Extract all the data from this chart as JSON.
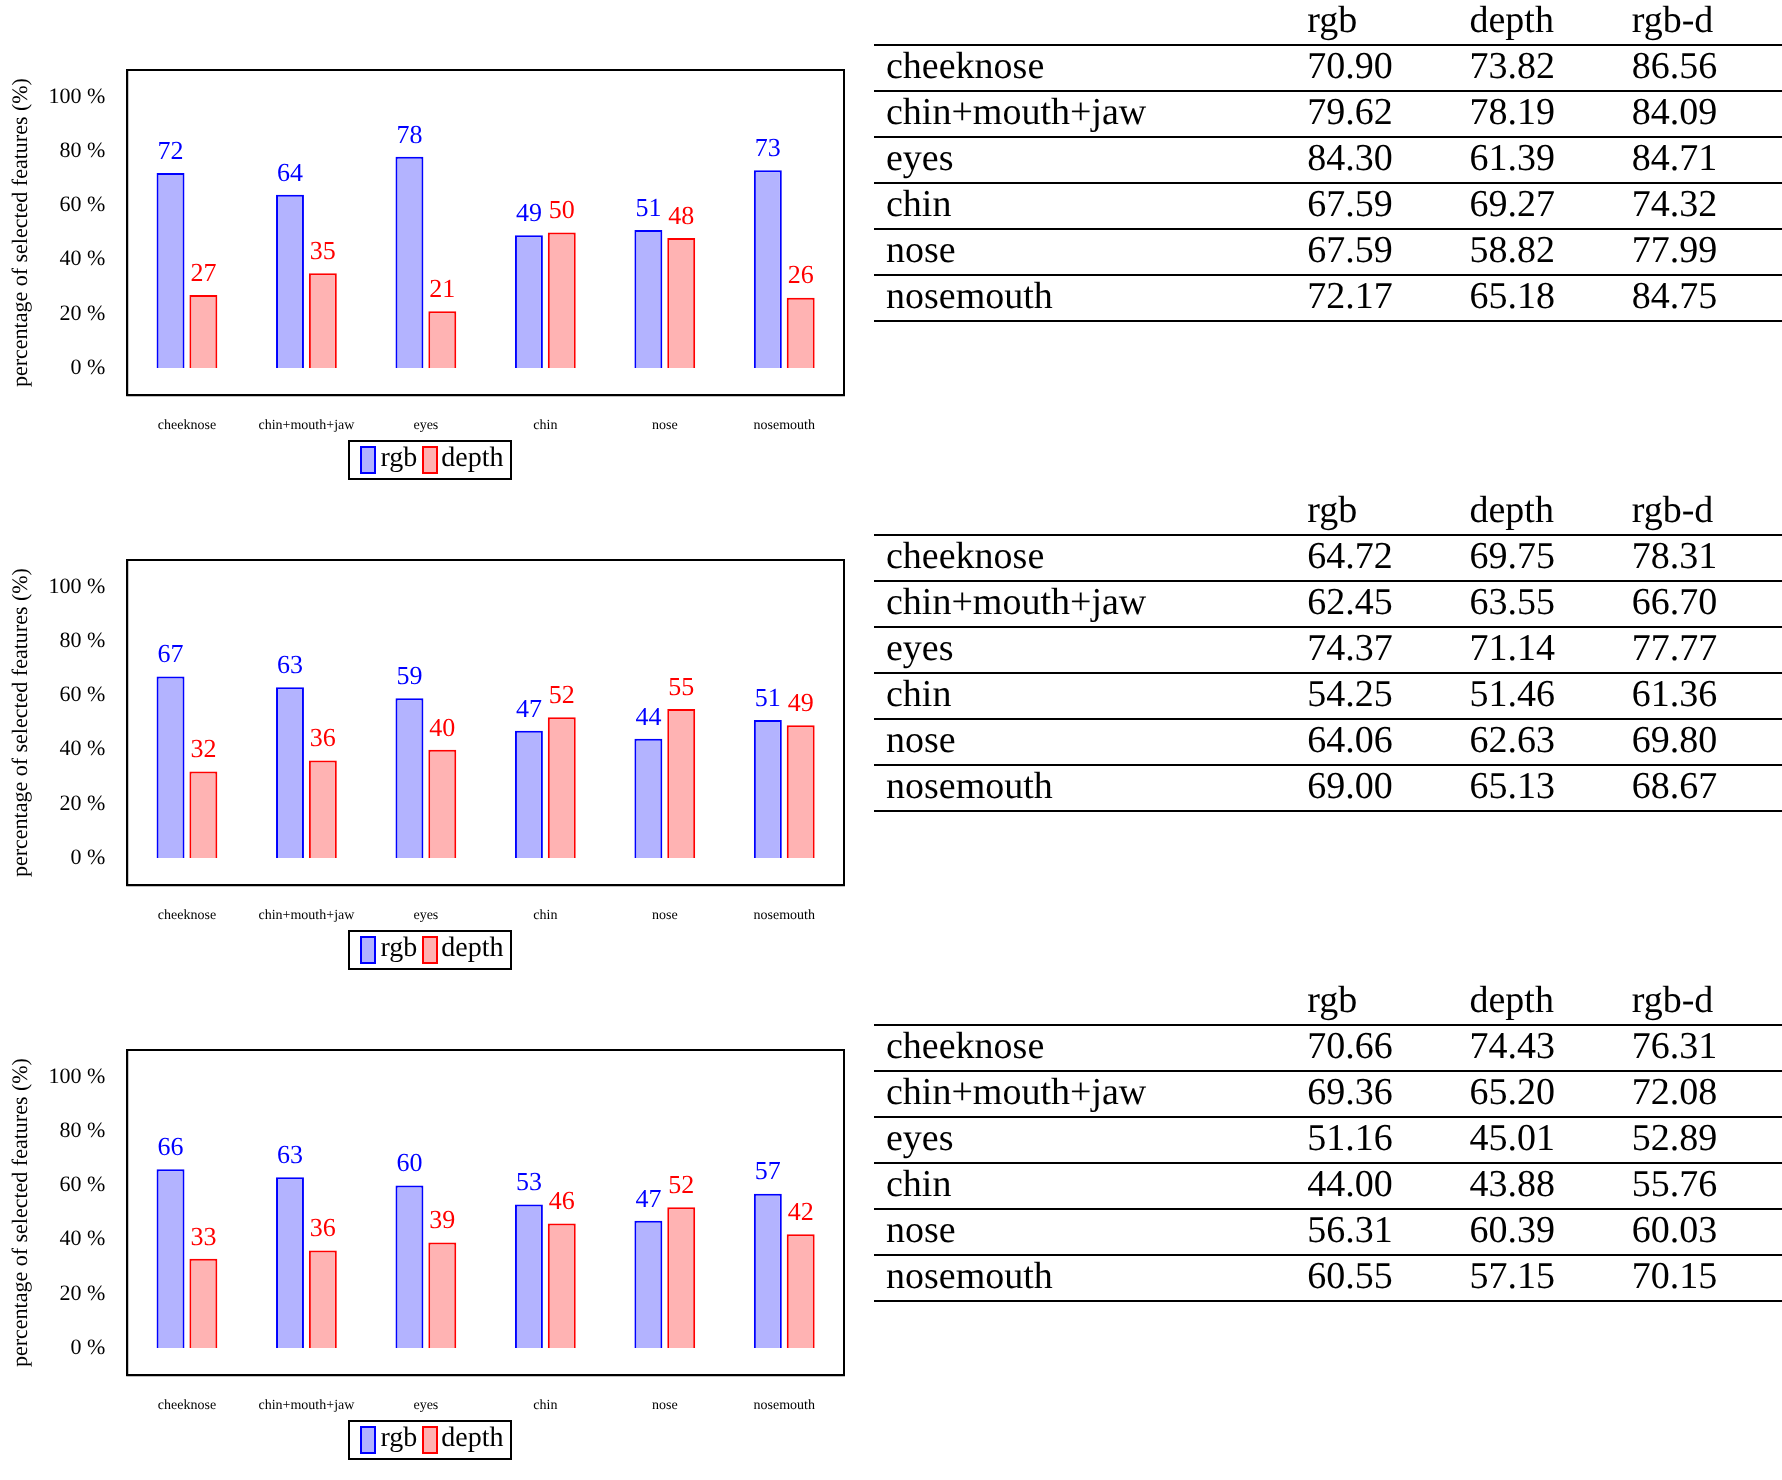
{
  "chart_data": [
    {
      "type": "bar",
      "ylabel": "percentage of selected features (%)",
      "categories": [
        "cheeknose",
        "chin+mouth+jaw",
        "eyes",
        "chin",
        "nose",
        "nosemouth"
      ],
      "series": [
        {
          "name": "rgb",
          "color": "#b3b3ff",
          "values": [
            72,
            64,
            78,
            49,
            51,
            73
          ]
        },
        {
          "name": "depth",
          "color": "#ffb3b3",
          "values": [
            27,
            35,
            21,
            50,
            48,
            26
          ]
        }
      ],
      "ylim": [
        -10,
        110
      ],
      "yticks": [
        {
          "value": 0,
          "label": "0 %"
        },
        {
          "value": 20,
          "label": "20 %"
        },
        {
          "value": 40,
          "label": "40 %"
        },
        {
          "value": 60,
          "label": "60 %"
        },
        {
          "value": 80,
          "label": "80 %"
        },
        {
          "value": 100,
          "label": "100 %"
        }
      ],
      "data_labels": true,
      "legend": "bottom"
    },
    {
      "type": "other",
      "categories": [
        "cheeknose",
        "chin+mouth+jaw",
        "eyes",
        "chin",
        "nose",
        "nosemouth"
      ],
      "series": [
        {
          "name": "rgb",
          "values": [
            70.9,
            79.62,
            84.3,
            67.59,
            67.59,
            72.17
          ],
          "value_labels": [
            "70.90",
            "79.62",
            "84.30",
            "67.59",
            "67.59",
            "72.17"
          ]
        },
        {
          "name": "depth",
          "values": [
            73.82,
            78.19,
            61.39,
            69.27,
            58.82,
            65.18
          ],
          "value_labels": [
            "73.82",
            "78.19",
            "61.39",
            "69.27",
            "58.82",
            "65.18"
          ]
        },
        {
          "name": "rgb-d",
          "values": [
            86.56,
            84.09,
            84.71,
            74.32,
            77.99,
            84.75
          ],
          "value_labels": [
            "86.56",
            "84.09",
            "84.71",
            "74.32",
            "77.99",
            "84.75"
          ]
        }
      ]
    },
    {
      "type": "bar",
      "ylabel": "percentage of selected features (%)",
      "categories": [
        "cheeknose",
        "chin+mouth+jaw",
        "eyes",
        "chin",
        "nose",
        "nosemouth"
      ],
      "series": [
        {
          "name": "rgb",
          "color": "#b3b3ff",
          "values": [
            67,
            63,
            59,
            47,
            44,
            51
          ]
        },
        {
          "name": "depth",
          "color": "#ffb3b3",
          "values": [
            32,
            36,
            40,
            52,
            55,
            49
          ]
        }
      ],
      "ylim": [
        -10,
        110
      ],
      "yticks": [
        {
          "value": 0,
          "label": "0 %"
        },
        {
          "value": 20,
          "label": "20 %"
        },
        {
          "value": 40,
          "label": "40 %"
        },
        {
          "value": 60,
          "label": "60 %"
        },
        {
          "value": 80,
          "label": "80 %"
        },
        {
          "value": 100,
          "label": "100 %"
        }
      ],
      "data_labels": true,
      "legend": "bottom"
    },
    {
      "type": "other",
      "categories": [
        "cheeknose",
        "chin+mouth+jaw",
        "eyes",
        "chin",
        "nose",
        "nosemouth"
      ],
      "series": [
        {
          "name": "rgb",
          "values": [
            64.72,
            62.45,
            74.37,
            54.25,
            64.06,
            69.0
          ],
          "value_labels": [
            "64.72",
            "62.45",
            "74.37",
            "54.25",
            "64.06",
            "69.00"
          ]
        },
        {
          "name": "depth",
          "values": [
            69.75,
            63.55,
            71.14,
            51.46,
            62.63,
            65.13
          ],
          "value_labels": [
            "69.75",
            "63.55",
            "71.14",
            "51.46",
            "62.63",
            "65.13"
          ]
        },
        {
          "name": "rgb-d",
          "values": [
            78.31,
            66.7,
            77.77,
            61.36,
            69.8,
            68.67
          ],
          "value_labels": [
            "78.31",
            "66.70",
            "77.77",
            "61.36",
            "69.80",
            "68.67"
          ]
        }
      ]
    },
    {
      "type": "bar",
      "ylabel": "percentage of selected features (%)",
      "categories": [
        "cheeknose",
        "chin+mouth+jaw",
        "eyes",
        "chin",
        "nose",
        "nosemouth"
      ],
      "series": [
        {
          "name": "rgb",
          "color": "#b3b3ff",
          "values": [
            66,
            63,
            60,
            53,
            47,
            57
          ]
        },
        {
          "name": "depth",
          "color": "#ffb3b3",
          "values": [
            33,
            36,
            39,
            46,
            52,
            42
          ]
        }
      ],
      "ylim": [
        -10,
        110
      ],
      "yticks": [
        {
          "value": 0,
          "label": "0 %"
        },
        {
          "value": 20,
          "label": "20 %"
        },
        {
          "value": 40,
          "label": "40 %"
        },
        {
          "value": 60,
          "label": "60 %"
        },
        {
          "value": 80,
          "label": "80 %"
        },
        {
          "value": 100,
          "label": "100 %"
        }
      ],
      "data_labels": true,
      "legend": "bottom"
    },
    {
      "type": "other",
      "categories": [
        "cheeknose",
        "chin+mouth+jaw",
        "eyes",
        "chin",
        "nose",
        "nosemouth"
      ],
      "series": [
        {
          "name": "rgb",
          "values": [
            70.66,
            69.36,
            51.16,
            44.0,
            56.31,
            60.55
          ],
          "value_labels": [
            "70.66",
            "69.36",
            "51.16",
            "44.00",
            "56.31",
            "60.55"
          ]
        },
        {
          "name": "depth",
          "values": [
            74.43,
            65.2,
            45.01,
            43.88,
            60.39,
            57.15
          ],
          "value_labels": [
            "74.43",
            "65.20",
            "45.01",
            "43.88",
            "60.39",
            "57.15"
          ]
        },
        {
          "name": "rgb-d",
          "values": [
            76.31,
            72.08,
            52.89,
            55.76,
            60.03,
            70.15
          ],
          "value_labels": [
            "76.31",
            "72.08",
            "52.89",
            "55.76",
            "60.03",
            "70.15"
          ]
        }
      ]
    }
  ]
}
